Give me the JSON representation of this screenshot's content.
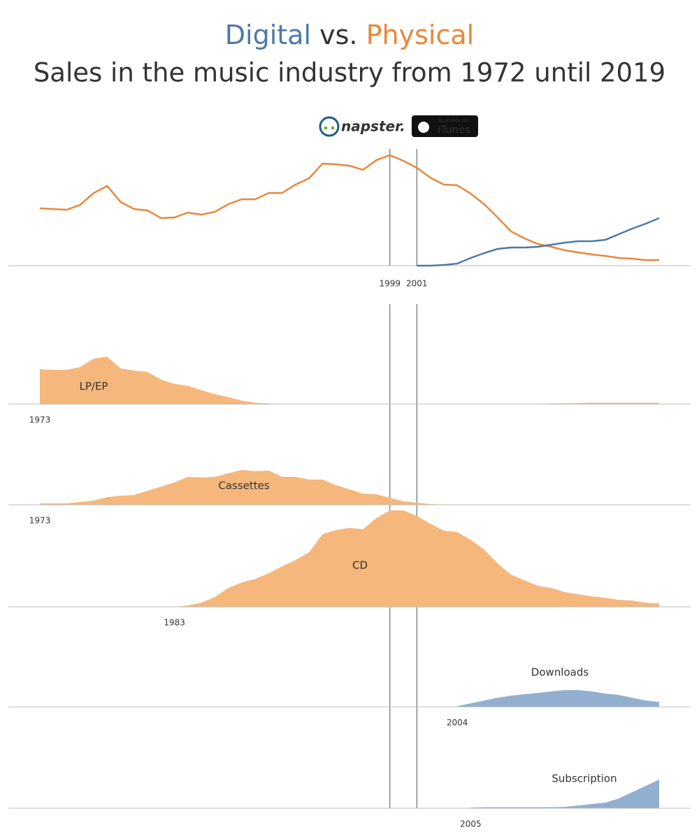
{
  "logos": {
    "napster": "napster.",
    "itunes_small": "Available on",
    "itunes": "iTunes"
  },
  "chart_data": [
    {
      "type": "line",
      "title_connector": "vs.",
      "subtitle": "Sales in the music industry from 1972 until 2019",
      "x": [
        1973,
        1974,
        1975,
        1976,
        1977,
        1978,
        1979,
        1980,
        1981,
        1982,
        1983,
        1984,
        1985,
        1986,
        1987,
        1988,
        1989,
        1990,
        1991,
        1992,
        1993,
        1994,
        1995,
        1996,
        1997,
        1998,
        1999,
        2000,
        2001,
        2002,
        2003,
        2004,
        2005,
        2006,
        2007,
        2008,
        2009,
        2010,
        2011,
        2012,
        2013,
        2014,
        2015,
        2016,
        2017,
        2018,
        2019
      ],
      "xlim": [
        1973,
        2019
      ],
      "ylim": [
        0,
        170
      ],
      "xticks": [
        1999,
        2001
      ],
      "series": [
        {
          "name": "Physical",
          "color": "#e8883a",
          "values": [
            82,
            81,
            80,
            87,
            104,
            114,
            91,
            81,
            79,
            68,
            69,
            76,
            73,
            77,
            88,
            95,
            95,
            104,
            104,
            116,
            125,
            146,
            145,
            143,
            137,
            151,
            158,
            150,
            140,
            126,
            116,
            115,
            103,
            88,
            69,
            49,
            39,
            31,
            27,
            22,
            19,
            16,
            14,
            11,
            10,
            8,
            8
          ]
        },
        {
          "name": "Digital",
          "color": "#4e79a7",
          "values": [
            null,
            null,
            null,
            null,
            null,
            null,
            null,
            null,
            null,
            null,
            null,
            null,
            null,
            null,
            null,
            null,
            null,
            null,
            null,
            null,
            null,
            null,
            null,
            null,
            null,
            null,
            null,
            null,
            0,
            0,
            1,
            3,
            11,
            18,
            24,
            26,
            26,
            27,
            30,
            33,
            35,
            35,
            37,
            45,
            53,
            60,
            68
          ]
        }
      ]
    },
    {
      "type": "area",
      "name": "LP/EP",
      "color": "#f5b77b",
      "xlim": [
        1973,
        2019
      ],
      "ylim": [
        0,
        145
      ],
      "x": [
        1973,
        1974,
        1975,
        1976,
        1977,
        1978,
        1979,
        1980,
        1981,
        1982,
        1983,
        1984,
        1985,
        1986,
        1987,
        1988,
        1989,
        1990,
        1991,
        1992,
        1993,
        1994,
        1995,
        1996,
        1997,
        1998,
        1999,
        2000,
        2001,
        2002,
        2003,
        2004,
        2005,
        2006,
        2007,
        2008,
        2009,
        2010,
        2011,
        2012,
        2013,
        2014,
        2015,
        2016,
        2017,
        2018,
        2019
      ],
      "values": [
        50,
        49,
        49,
        53,
        65,
        68,
        51,
        48,
        46,
        35,
        29,
        26,
        20,
        14,
        10,
        5,
        2,
        1,
        0,
        0,
        0,
        0,
        0,
        0,
        0,
        0,
        0,
        0,
        0,
        0,
        0,
        0,
        0,
        0,
        0,
        0,
        0.5,
        0.5,
        1,
        1,
        1.5,
        2,
        2,
        2,
        2,
        2,
        2
      ]
    },
    {
      "type": "area",
      "name": "Cassettes",
      "color": "#f5b77b",
      "xlim": [
        1973,
        2019
      ],
      "ylim": [
        0,
        145
      ],
      "x": [
        1973,
        1974,
        1975,
        1976,
        1977,
        1978,
        1979,
        1980,
        1981,
        1982,
        1983,
        1984,
        1985,
        1986,
        1987,
        1988,
        1989,
        1990,
        1991,
        1992,
        1993,
        1994,
        1995,
        1996,
        1997,
        1998,
        1999,
        2000,
        2001,
        2002,
        2003,
        2004,
        2005,
        2006,
        2007,
        2008
      ],
      "values": [
        2,
        2,
        2,
        4,
        6,
        11,
        13,
        14,
        20,
        26,
        32,
        40,
        39,
        40,
        45,
        50,
        48,
        49,
        40,
        40,
        36,
        36,
        28,
        22,
        16,
        15,
        10,
        5,
        3,
        1,
        0.5,
        0,
        0,
        0,
        0,
        0
      ]
    },
    {
      "type": "area",
      "name": "CD",
      "color": "#f5b77b",
      "xlim": [
        1973,
        2019
      ],
      "ylim": [
        0,
        145
      ],
      "x": [
        1983,
        1984,
        1985,
        1986,
        1987,
        1988,
        1989,
        1990,
        1991,
        1992,
        1993,
        1994,
        1995,
        1996,
        1997,
        1998,
        1999,
        2000,
        2001,
        2002,
        2003,
        2004,
        2005,
        2006,
        2007,
        2008,
        2009,
        2010,
        2011,
        2012,
        2013,
        2014,
        2015,
        2016,
        2017,
        2018,
        2019
      ],
      "values": [
        0,
        2,
        6,
        14,
        27,
        35,
        40,
        48,
        58,
        67,
        78,
        104,
        110,
        113,
        111,
        127,
        138,
        138,
        130,
        119,
        109,
        107,
        96,
        82,
        62,
        46,
        38,
        30,
        27,
        21,
        18,
        15,
        13,
        10,
        9,
        6,
        5
      ]
    },
    {
      "type": "area",
      "name": "Downloads",
      "color": "#93afcf",
      "xlim": [
        1973,
        2019
      ],
      "ylim": [
        0,
        145
      ],
      "x": [
        2004,
        2005,
        2006,
        2007,
        2008,
        2009,
        2010,
        2011,
        2012,
        2013,
        2014,
        2015,
        2016,
        2017,
        2018,
        2019
      ],
      "values": [
        1,
        5,
        9,
        13,
        16,
        18,
        20,
        22,
        24,
        24,
        22,
        19,
        17,
        13,
        9,
        7
      ]
    },
    {
      "type": "area",
      "name": "Subscription",
      "color": "#93afcf",
      "xlim": [
        1973,
        2019
      ],
      "ylim": [
        0,
        145
      ],
      "x": [
        2005,
        2006,
        2007,
        2008,
        2009,
        2010,
        2011,
        2012,
        2013,
        2014,
        2015,
        2016,
        2017,
        2018,
        2019
      ],
      "values": [
        1,
        1.5,
        1.5,
        1.5,
        1.5,
        1.5,
        1.5,
        2,
        4,
        6,
        8,
        14,
        23,
        32,
        41
      ]
    }
  ]
}
